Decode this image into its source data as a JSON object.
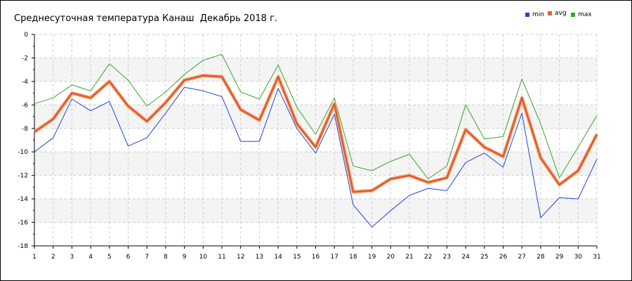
{
  "chart_data": {
    "type": "line",
    "title": "Среднесуточная температура Канаш  Декабрь 2018 г.",
    "xlabel": "",
    "ylabel": "",
    "x": [
      1,
      2,
      3,
      4,
      5,
      6,
      7,
      8,
      9,
      10,
      11,
      12,
      13,
      14,
      15,
      16,
      17,
      18,
      19,
      20,
      21,
      22,
      23,
      24,
      25,
      26,
      27,
      28,
      29,
      30,
      31
    ],
    "xlim": [
      1,
      31
    ],
    "ylim": [
      -18,
      0
    ],
    "yticks": [
      0,
      -2,
      -4,
      -6,
      -8,
      -10,
      -12,
      -14,
      -16,
      -18
    ],
    "grid": true,
    "legend_position": "top-right",
    "series": [
      {
        "name": "min",
        "color": "#2245d6",
        "values": [
          -10.0,
          -8.8,
          -5.5,
          -6.5,
          -5.7,
          -9.5,
          -8.8,
          -6.7,
          -4.5,
          -4.8,
          -5.3,
          -9.1,
          -9.1,
          -4.6,
          -8.0,
          -10.1,
          -6.8,
          -14.5,
          -16.4,
          -15.0,
          -13.7,
          -13.1,
          -13.3,
          -10.9,
          -10.1,
          -11.3,
          -6.7,
          -15.6,
          -13.9,
          -14.0,
          -10.6
        ]
      },
      {
        "name": "avg",
        "color": "#e8602c",
        "values": [
          -8.3,
          -7.2,
          -5.0,
          -5.4,
          -4.0,
          -6.1,
          -7.4,
          -5.8,
          -3.9,
          -3.5,
          -3.6,
          -6.4,
          -7.3,
          -3.6,
          -7.6,
          -9.6,
          -5.9,
          -13.4,
          -13.3,
          -12.3,
          -12.0,
          -12.6,
          -12.2,
          -8.1,
          -9.6,
          -10.4,
          -5.4,
          -10.5,
          -12.8,
          -11.6,
          -8.5
        ]
      },
      {
        "name": "max",
        "color": "#3aa52c",
        "values": [
          -5.9,
          -5.4,
          -4.3,
          -4.8,
          -2.5,
          -3.9,
          -6.1,
          -4.9,
          -3.4,
          -2.2,
          -1.7,
          -4.9,
          -5.5,
          -2.6,
          -6.2,
          -8.5,
          -5.4,
          -11.2,
          -11.6,
          -10.8,
          -10.2,
          -12.3,
          -11.2,
          -6.0,
          -8.9,
          -8.7,
          -3.8,
          -7.6,
          -12.2,
          -9.6,
          -6.9
        ]
      }
    ]
  }
}
